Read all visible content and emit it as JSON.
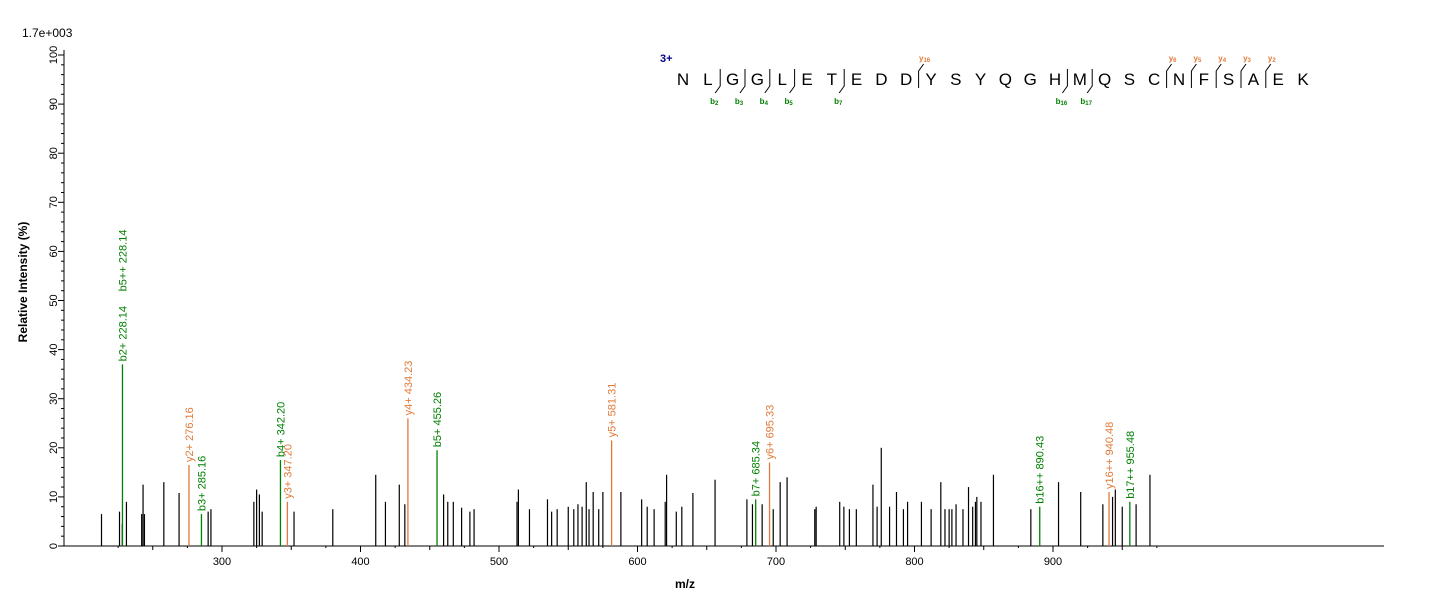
{
  "chart_data": {
    "type": "bar",
    "max_intensity_label": "1.7e+003",
    "xlabel": "m/z",
    "ylabel": "Relative   Intensity (%)",
    "xlim": [
      210,
      990
    ],
    "ylim": [
      0,
      100
    ],
    "x_ticks": [
      300,
      400,
      500,
      600,
      700,
      800,
      900
    ],
    "y_ticks": [
      0,
      10,
      20,
      30,
      40,
      50,
      60,
      70,
      80,
      90,
      100
    ],
    "grid": false,
    "colors": {
      "b_ion": "#008000",
      "y_ion": "#e07a3a",
      "unassigned": "#000000",
      "charge": "#00008b"
    },
    "peaks": [
      [
        213,
        6.5
      ],
      [
        226,
        7
      ],
      [
        228,
        4.5
      ],
      [
        231,
        9
      ],
      [
        242,
        6.5
      ],
      [
        243,
        12.5
      ],
      [
        244,
        6.5
      ],
      [
        258,
        13
      ],
      [
        269,
        10.8
      ],
      [
        290,
        7
      ],
      [
        292,
        7.5
      ],
      [
        323,
        9
      ],
      [
        325,
        11.5
      ],
      [
        327,
        10.5
      ],
      [
        329,
        7
      ],
      [
        352,
        7
      ],
      [
        380,
        7.5
      ],
      [
        411,
        14.5
      ],
      [
        418,
        9
      ],
      [
        428,
        12.5
      ],
      [
        432,
        8.5
      ],
      [
        460,
        10.5
      ],
      [
        463,
        9
      ],
      [
        467,
        9
      ],
      [
        473,
        7.8
      ],
      [
        479,
        7
      ],
      [
        482,
        7.5
      ],
      [
        513,
        9
      ],
      [
        514,
        11.5
      ],
      [
        522,
        7.5
      ],
      [
        535,
        9.5
      ],
      [
        538,
        7
      ],
      [
        542,
        7.5
      ],
      [
        550,
        8
      ],
      [
        554,
        7.5
      ],
      [
        557,
        8.5
      ],
      [
        560,
        8
      ],
      [
        563,
        13
      ],
      [
        565,
        7.5
      ],
      [
        568,
        11
      ],
      [
        572,
        7.5
      ],
      [
        575,
        11
      ],
      [
        588,
        11
      ],
      [
        603,
        9.5
      ],
      [
        607,
        8
      ],
      [
        612,
        7.5
      ],
      [
        620,
        9
      ],
      [
        621,
        14.5
      ],
      [
        628,
        7
      ],
      [
        632,
        8
      ],
      [
        640,
        10.8
      ],
      [
        656,
        13.5
      ],
      [
        679,
        9.5
      ],
      [
        683,
        8.5
      ],
      [
        690,
        8.5
      ],
      [
        698,
        7.5
      ],
      [
        703,
        13
      ],
      [
        708,
        14
      ],
      [
        728,
        7.5
      ],
      [
        729,
        8
      ],
      [
        746,
        9
      ],
      [
        749,
        8
      ],
      [
        753,
        7.5
      ],
      [
        758,
        7.5
      ],
      [
        770,
        12.5
      ],
      [
        773,
        8
      ],
      [
        776,
        20
      ],
      [
        782,
        8
      ],
      [
        787,
        11
      ],
      [
        792,
        7.5
      ],
      [
        795,
        9
      ],
      [
        805,
        9
      ],
      [
        812,
        7.5
      ],
      [
        819,
        13
      ],
      [
        822,
        7.5
      ],
      [
        825,
        7.5
      ],
      [
        827,
        7.5
      ],
      [
        830,
        8.5
      ],
      [
        835,
        7.5
      ],
      [
        839,
        12
      ],
      [
        842,
        8
      ],
      [
        844,
        9
      ],
      [
        845,
        10
      ],
      [
        848,
        9
      ],
      [
        857,
        14.5
      ],
      [
        884,
        7.5
      ],
      [
        904,
        13
      ],
      [
        920,
        11
      ],
      [
        936,
        8.5
      ],
      [
        943,
        10
      ],
      [
        945,
        11.5
      ],
      [
        950,
        8
      ],
      [
        960,
        8.5
      ],
      [
        970,
        14.5
      ]
    ],
    "annotated_peaks": [
      {
        "mz": 228.14,
        "intensity": 37,
        "ion": "b",
        "label": "b2+ 228.14",
        "label2": "b5++ 228.14"
      },
      {
        "mz": 276.16,
        "intensity": 16.5,
        "ion": "y",
        "label": "y2+ 276.16"
      },
      {
        "mz": 285.16,
        "intensity": 6.5,
        "ion": "b",
        "label": "b3+ 285.16"
      },
      {
        "mz": 342.2,
        "intensity": 17.5,
        "ion": "b",
        "label": "b4+ 342.20"
      },
      {
        "mz": 347.2,
        "intensity": 9,
        "ion": "y",
        "label": "y3+ 347.20"
      },
      {
        "mz": 434.23,
        "intensity": 26,
        "ion": "y",
        "label": "y4+ 434.23"
      },
      {
        "mz": 455.26,
        "intensity": 19.5,
        "ion": "b",
        "label": "b5+ 455.26"
      },
      {
        "mz": 581.31,
        "intensity": 21.5,
        "ion": "y",
        "label": "y5+ 581.31"
      },
      {
        "mz": 685.34,
        "intensity": 9.5,
        "ion": "b",
        "label": "b7+ 685.34"
      },
      {
        "mz": 695.33,
        "intensity": 17,
        "ion": "y",
        "label": "y6+ 695.33"
      },
      {
        "mz": 890.43,
        "intensity": 8,
        "ion": "b",
        "label": "b16++ 890.43"
      },
      {
        "mz": 940.48,
        "intensity": 11,
        "ion": "y",
        "label": "y16++ 940.48"
      },
      {
        "mz": 955.48,
        "intensity": 9,
        "ion": "b",
        "label": "b17++ 955.48"
      }
    ],
    "sequence": {
      "charge": "3+",
      "residues": [
        "N",
        "L",
        "G",
        "G",
        "L",
        "E",
        "T",
        "E",
        "D",
        "D",
        "Y",
        "S",
        "Y",
        "Q",
        "G",
        "H",
        "M",
        "Q",
        "S",
        "C",
        "N",
        "F",
        "S",
        "A",
        "E",
        "K"
      ],
      "b_ions": [
        {
          "after": 2,
          "main": "b",
          "sub": "2"
        },
        {
          "after": 3,
          "main": "b",
          "sub": "3"
        },
        {
          "after": 4,
          "main": "b",
          "sub": "4"
        },
        {
          "after": 5,
          "main": "b",
          "sub": "5"
        },
        {
          "after": 7,
          "main": "b",
          "sub": "7"
        },
        {
          "after": 16,
          "main": "b",
          "sub": "16"
        },
        {
          "after": 17,
          "main": "b",
          "sub": "17"
        }
      ],
      "y_ions": [
        {
          "after": 10,
          "main": "y",
          "sub": "16"
        },
        {
          "after": 20,
          "main": "y",
          "sub": "6"
        },
        {
          "after": 21,
          "main": "y",
          "sub": "5"
        },
        {
          "after": 22,
          "main": "y",
          "sub": "4"
        },
        {
          "after": 23,
          "main": "y",
          "sub": "3"
        },
        {
          "after": 24,
          "main": "y",
          "sub": "2"
        }
      ]
    }
  }
}
